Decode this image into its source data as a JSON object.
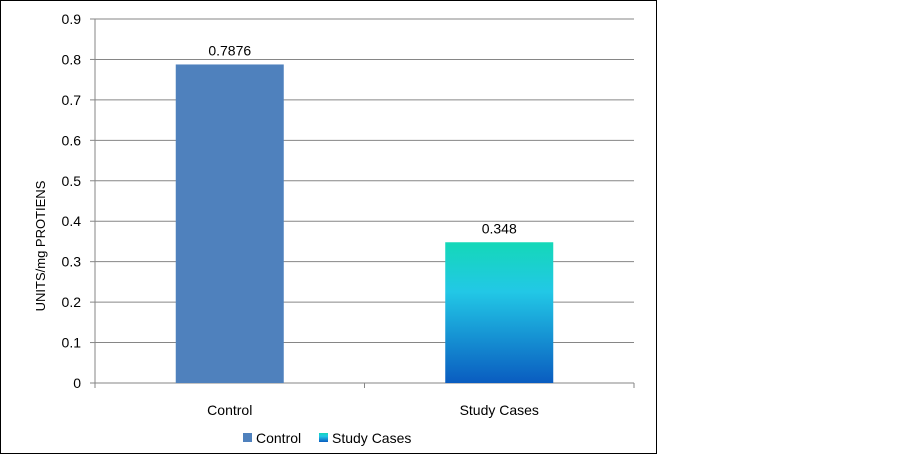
{
  "chart_data": {
    "type": "bar",
    "categories": [
      "Control",
      "Study Cases"
    ],
    "values": [
      0.7876,
      0.348
    ],
    "data_labels": [
      "0.7876",
      "0.348"
    ],
    "title": "",
    "xlabel": "",
    "ylabel": "UNITS/mg PROTIENS",
    "ylim": [
      0,
      0.9
    ],
    "yticks": [
      "0",
      "0.1",
      "0.2",
      "0.3",
      "0.4",
      "0.5",
      "0.6",
      "0.7",
      "0.8",
      "0.9"
    ],
    "grid": true,
    "legend_position": "bottom",
    "legend": [
      {
        "name": "Control",
        "color": "#4f81bd"
      },
      {
        "name": "Study Cases",
        "color": "#1fb6d6"
      }
    ],
    "colors": {
      "control": "#4f81bd",
      "study_top": "#14d8b8",
      "study_mid": "#22c8e6",
      "study_bottom": "#0a5cc0"
    }
  }
}
